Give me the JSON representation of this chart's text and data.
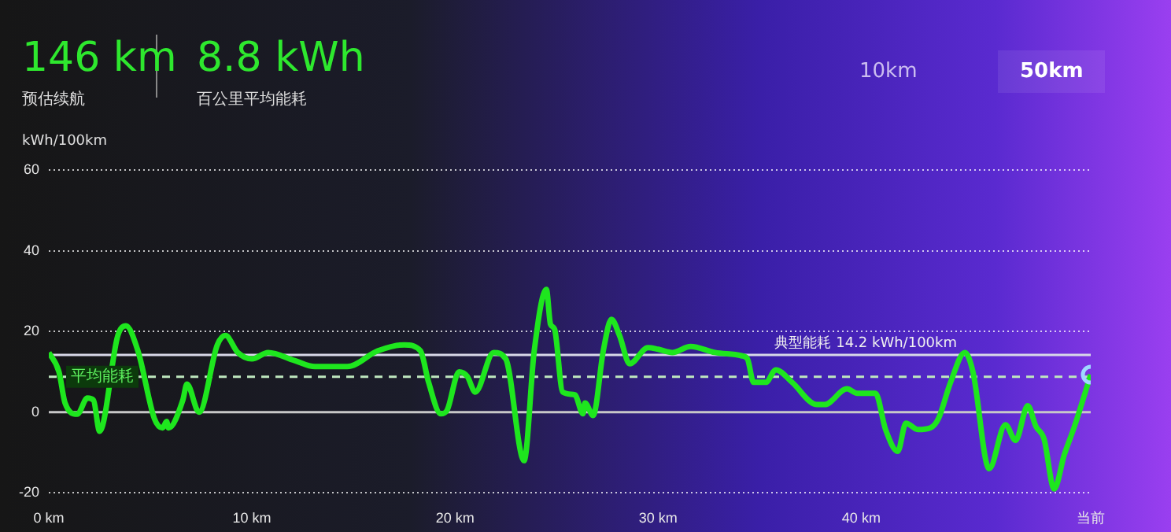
{
  "chart_data": {
    "type": "line",
    "ylabel": "kWh/100km",
    "annotations": [
      "146 km",
      "预估续航",
      "8.8 kWh",
      "百公里平均能耗",
      "10km",
      "50km"
    ],
    "x": [
      0,
      0.5,
      0.8,
      1.4,
      1.9,
      2.2,
      2.5,
      3.4,
      3.8,
      4.4,
      5.2,
      5.6,
      5.8,
      5.9,
      6.6,
      6.8,
      7.4,
      8.3,
      8.7,
      9.3,
      10.0,
      10.8,
      12.1,
      13.1,
      14.7,
      16.2,
      17.5,
      18.3,
      18.7,
      19.3,
      19.6,
      20.2,
      20.6,
      21.0,
      21.9,
      22.5,
      23.4,
      23.9,
      24.5,
      24.7,
      24.9,
      25.3,
      25.9,
      26.3,
      26.4,
      26.8,
      27.3,
      27.7,
      28.1,
      28.6,
      29.5,
      30.0,
      30.7,
      31.6,
      32.8,
      34.1,
      34.4,
      34.7,
      35.3,
      35.8,
      36.6,
      37.8,
      38.2,
      39.3,
      39.8,
      40.7,
      41.2,
      41.8,
      42.2,
      42.8,
      43.4,
      43.8,
      44.4,
      45.1,
      45.5,
      46.3,
      47.1,
      47.6,
      48.2,
      48.6,
      49.0,
      49.5,
      50.0,
      50.5,
      51.3
    ],
    "series": [
      {
        "color": "#1ee61e",
        "values": [
          14.8,
          10,
          2.3,
          -0.5,
          3.5,
          3,
          -4.7,
          19,
          21.4,
          15,
          -1.6,
          -3.9,
          -2.3,
          -3.9,
          3,
          7,
          0,
          16.7,
          19,
          14.8,
          13.2,
          14.8,
          12.8,
          11.3,
          11.3,
          15.2,
          16.7,
          15.2,
          7.4,
          -0.4,
          0.4,
          10,
          8.9,
          5,
          14.8,
          13.2,
          -12,
          15.2,
          30.4,
          21.8,
          20.6,
          5,
          4.3,
          -0.4,
          2.3,
          -0.8,
          15.2,
          23,
          19,
          12,
          16,
          15.6,
          14.8,
          16.3,
          14.8,
          14,
          13.2,
          7.4,
          7.4,
          10.5,
          7.4,
          1.9,
          1.9,
          5.8,
          4.7,
          4.7,
          -4.3,
          -9.7,
          -2.7,
          -4.3,
          -3.9,
          -1.6,
          7.4,
          14.8,
          10,
          -14,
          -3.1,
          -7,
          1.6,
          -3.5,
          -6.6,
          -19,
          -10.5,
          -3.5,
          9.3
        ]
      }
    ],
    "xlim": [
      0,
      51.3
    ],
    "xticks": [
      {
        "value": 0,
        "label": "0 km"
      },
      {
        "value": 10,
        "label": "10 km"
      },
      {
        "value": 20,
        "label": "20 km"
      },
      {
        "value": 30,
        "label": "30 km"
      },
      {
        "value": 40,
        "label": "40 km"
      },
      {
        "value": 51.3,
        "label": "当前"
      }
    ],
    "ylim": [
      -20,
      60
    ],
    "yticks": [
      -20,
      0,
      20,
      40,
      60
    ],
    "grid": "y",
    "legend": false,
    "ref_lines": [
      {
        "axis": "y",
        "value": 14.2,
        "label": "典型能耗 14.2 kWh/100km",
        "color": "#d8d8e8"
      },
      {
        "axis": "y",
        "value": 8.8,
        "label": "平均能耗",
        "color": "#bfe8bf",
        "line_style": "dashed"
      },
      {
        "axis": "y",
        "value": 0,
        "color": "#c8c8c8"
      }
    ]
  }
}
